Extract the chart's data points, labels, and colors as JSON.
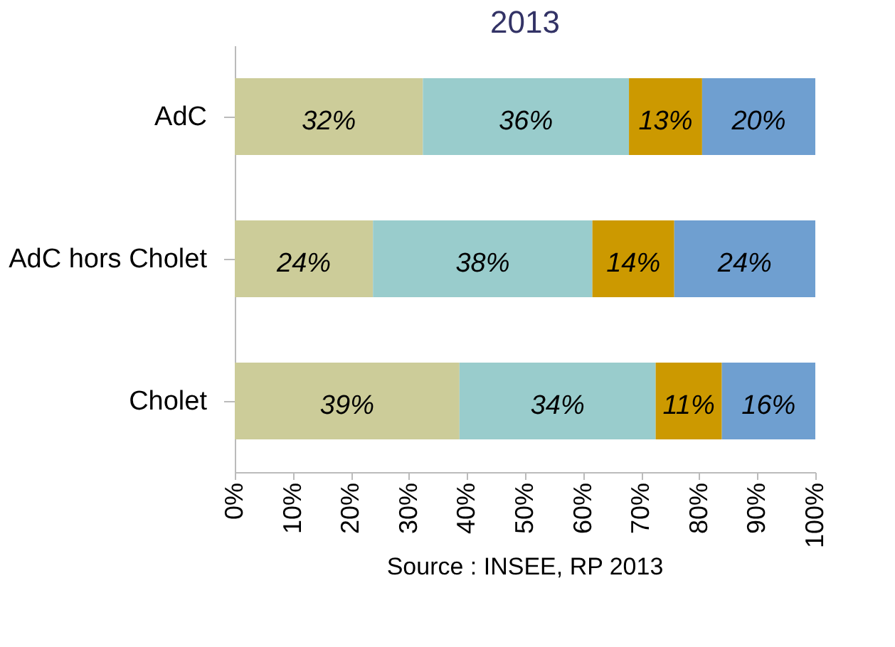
{
  "chart_data": {
    "type": "bar",
    "orientation": "horizontal",
    "stacked": true,
    "title": "2013",
    "categories": [
      "AdC",
      "AdC hors Cholet",
      "Cholet"
    ],
    "series": [
      {
        "color": "#cccc99",
        "values": [
          32.4,
          23.8,
          38.7
        ],
        "value_labels": [
          "32%",
          "24%",
          "39%"
        ]
      },
      {
        "color": "#99cccc",
        "values": [
          35.5,
          37.8,
          33.8
        ],
        "value_labels": [
          "36%",
          "38%",
          "34%"
        ]
      },
      {
        "color": "#cc9900",
        "values": [
          12.6,
          14.1,
          11.4
        ],
        "value_labels": [
          "13%",
          "14%",
          "11%"
        ]
      },
      {
        "color": "#6f9fd0",
        "values": [
          19.5,
          24.3,
          16.1
        ],
        "value_labels": [
          "20%",
          "24%",
          "16%"
        ]
      }
    ],
    "xlim": [
      0,
      100
    ],
    "xticks": [
      {
        "value": 0,
        "label": "0%"
      },
      {
        "value": 10,
        "label": "10%"
      },
      {
        "value": 20,
        "label": "20%"
      },
      {
        "value": 30,
        "label": "30%"
      },
      {
        "value": 40,
        "label": "40%"
      },
      {
        "value": 50,
        "label": "50%"
      },
      {
        "value": 60,
        "label": "60%"
      },
      {
        "value": 70,
        "label": "70%"
      },
      {
        "value": 80,
        "label": "80%"
      },
      {
        "value": 90,
        "label": "90%"
      },
      {
        "value": 100,
        "label": "100%"
      }
    ],
    "grid": false,
    "legend": false,
    "annotations": [
      "Source : INSEE, RP 2013"
    ]
  }
}
